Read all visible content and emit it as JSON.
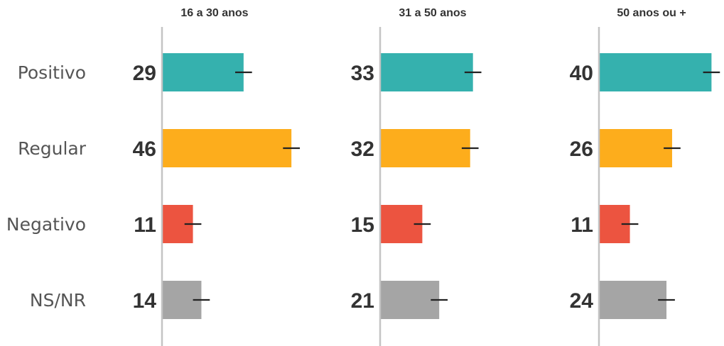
{
  "chart_data": {
    "type": "bar",
    "orientation": "horizontal",
    "categories": [
      "Positivo",
      "Regular",
      "Negativo",
      "NS/NR"
    ],
    "colors": [
      "#35b1ae",
      "#fdad1c",
      "#ec5440",
      "#a5a5a5"
    ],
    "error_bar_color": "#222222",
    "axis_color": "#c4c4c4",
    "xlim": [
      0,
      46
    ],
    "error_margin": 2,
    "panels": [
      {
        "title": "16 a 30 anos",
        "values": [
          29,
          46,
          11,
          14
        ]
      },
      {
        "title": "31 a 50 anos",
        "values": [
          33,
          32,
          15,
          21
        ]
      },
      {
        "title": "50 anos ou +",
        "values": [
          40,
          26,
          11,
          24
        ]
      }
    ]
  }
}
